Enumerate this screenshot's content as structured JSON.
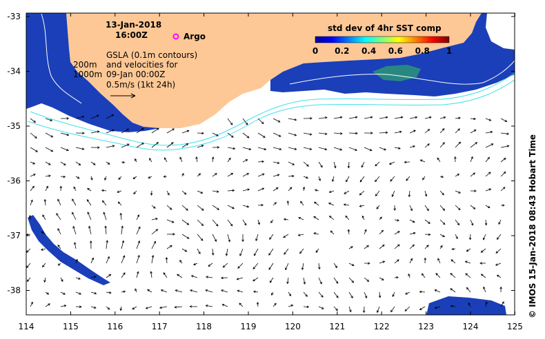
{
  "title": {
    "date": "13-Jan-2018",
    "time": "16:00Z"
  },
  "legend": {
    "argo_label": "Argo",
    "argo_color": "#ff00ff",
    "gsla_lines": [
      "GSLA (0.1m contours)",
      "and velocities for",
      "09-Jan 00:00Z"
    ],
    "velocity_scale": "0.5m/s (1kt 24h)",
    "isobath_200": "200m",
    "isobath_1000": "1000m"
  },
  "colorbar": {
    "title": "std dev of 4hr SST comp",
    "ticks": [
      "0",
      "0.2",
      "0.4",
      "0.6",
      "0.8",
      "1"
    ]
  },
  "axes": {
    "lon_ticks": [
      "114",
      "115",
      "116",
      "117",
      "118",
      "119",
      "120",
      "121",
      "122",
      "123",
      "124",
      "125"
    ],
    "lat_ticks": [
      "-33",
      "-34",
      "-35",
      "-36",
      "-37",
      "-38"
    ]
  },
  "credit": "© IMOS 15-Jan-2018 08:43 Hobart Time",
  "colors": {
    "land": "#fdc896",
    "isobath": "#40e0e8",
    "sst_low": "#1030b0",
    "ocean": "#ffffff"
  }
}
